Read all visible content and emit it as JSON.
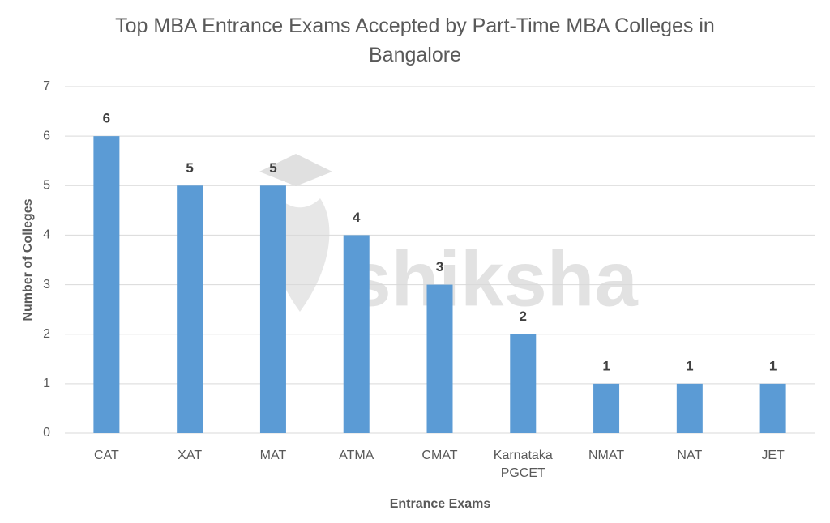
{
  "chart_data": {
    "type": "bar",
    "title": "Top MBA Entrance Exams Accepted by Part-Time MBA Colleges in Bangalore",
    "x_label": "Entrance Exams",
    "y_label": "Number of Colleges",
    "watermark": "shiksha",
    "categories": [
      "CAT",
      "XAT",
      "MAT",
      "ATMA",
      "CMAT",
      "Karnataka PGCET",
      "NMAT",
      "NAT",
      "JET"
    ],
    "values": [
      6,
      5,
      5,
      4,
      3,
      2,
      1,
      1,
      1
    ],
    "color": "#5b9bd5",
    "ylim": [
      0,
      7
    ],
    "yticks": [
      0,
      1,
      2,
      3,
      4,
      5,
      6,
      7
    ],
    "grid": true
  }
}
